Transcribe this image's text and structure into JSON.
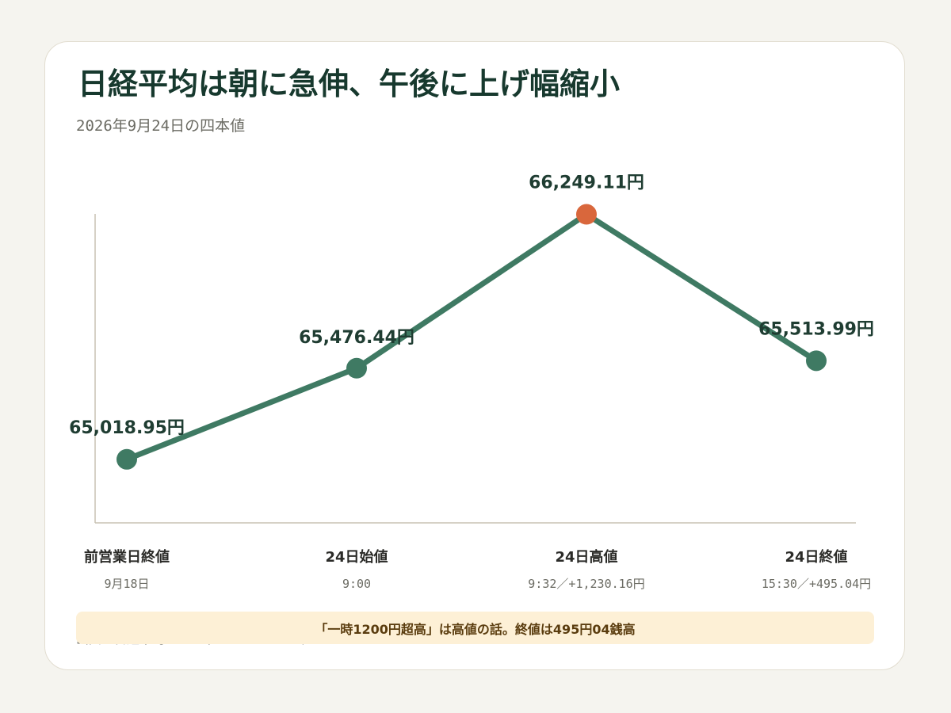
{
  "header": {
    "title": "日経平均は朝に急伸、午後に上げ幅縮小",
    "subtitle": "2026年9月24日の四本値"
  },
  "note": "「一時1200円超高」は高値の話。終値は495円04銭高",
  "source": "出典：日経平均プロフィル、Yahoo!ファイナンス",
  "colors": {
    "line": "#3f7a63",
    "point": "#3f7a63",
    "highlight": "#d9673c",
    "axis": "#c8c2b4"
  },
  "chart_data": {
    "type": "line",
    "categories": [
      "前営業日終値",
      "24日始値",
      "24日高値",
      "24日終値"
    ],
    "category_sublabels": [
      "9月18日",
      "9:00",
      "9:32／+1,230.16円",
      "15:30／+495.04円"
    ],
    "values": [
      65018.95,
      65476.44,
      66249.11,
      65513.99
    ],
    "value_labels": [
      "65,018.95円",
      "65,476.44円",
      "66,249.11円",
      "65,513.99円"
    ],
    "highlight_index": 2,
    "ylim": [
      64700,
      66450
    ],
    "grid": false
  }
}
